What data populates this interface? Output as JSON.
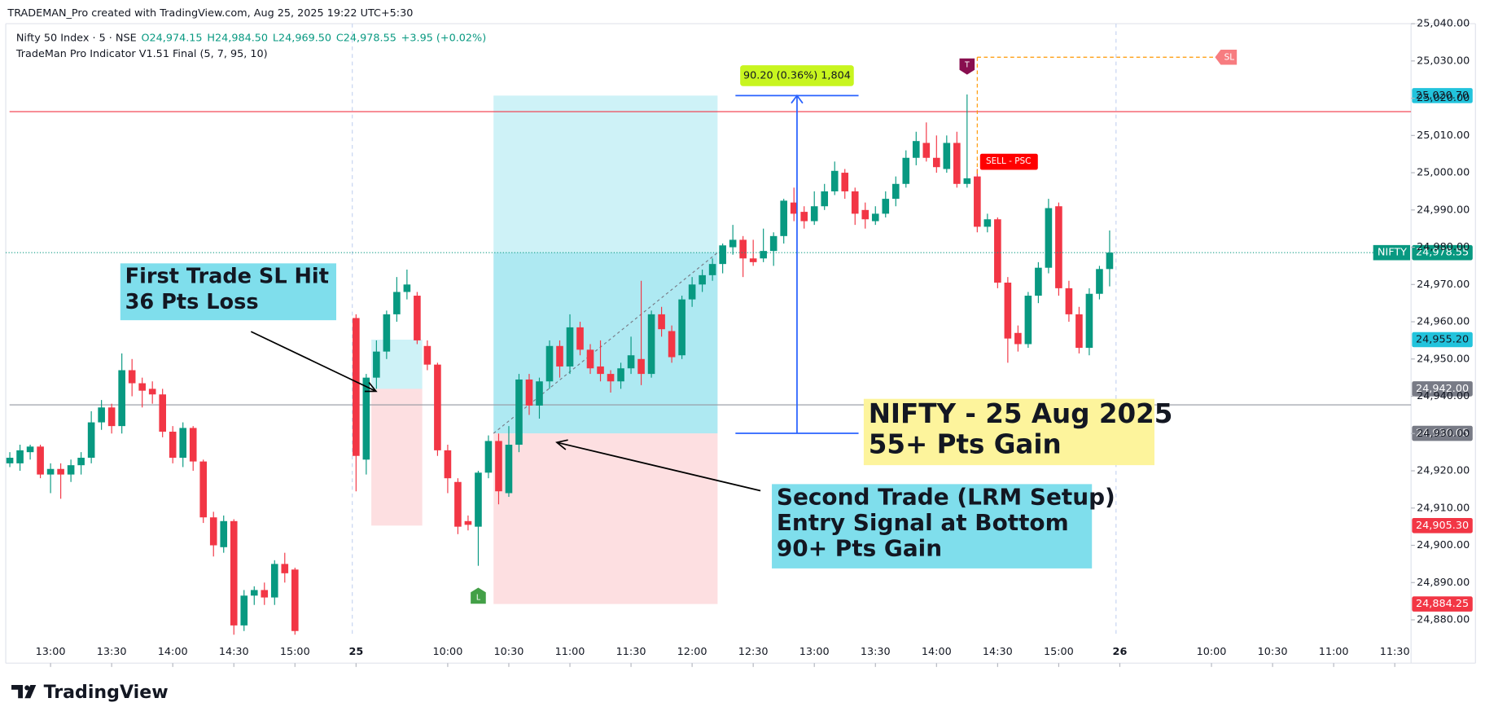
{
  "header": {
    "text": "TRADEMAN_Pro created with TradingView.com, Aug 25, 2025 19:22 UTC+5:30"
  },
  "legend": {
    "symbol": "Nifty 50 Index · 5 · NSE",
    "open": "O24,974.15",
    "high": "H24,984.50",
    "low": "L24,969.50",
    "close": "C24,978.55",
    "change": "+3.95 (+0.02%)",
    "indicator": "TradeMan Pro Indicator V1.51 Final (5, 7, 95, 10)"
  },
  "footer": {
    "brand": "TradingView"
  },
  "chart_data": {
    "type": "candlestick",
    "up_color": "#089981",
    "down_color": "#f23645",
    "grid": false,
    "xlim": [
      -0.4,
      137.6
    ],
    "xticks": [
      {
        "value": 4,
        "label": "13:00"
      },
      {
        "value": 10,
        "label": "13:30"
      },
      {
        "value": 16,
        "label": "14:00"
      },
      {
        "value": 22,
        "label": "14:30"
      },
      {
        "value": 28,
        "label": "15:00"
      },
      {
        "value": 34,
        "label": "25"
      },
      {
        "value": 43,
        "label": "10:00"
      },
      {
        "value": 49,
        "label": "10:30"
      },
      {
        "value": 55,
        "label": "11:00"
      },
      {
        "value": 61,
        "label": "11:30"
      },
      {
        "value": 67,
        "label": "12:00"
      },
      {
        "value": 73,
        "label": "12:30"
      },
      {
        "value": 79,
        "label": "13:00"
      },
      {
        "value": 85,
        "label": "13:30"
      },
      {
        "value": 91,
        "label": "14:00"
      },
      {
        "value": 97,
        "label": "14:30"
      },
      {
        "value": 103,
        "label": "15:00"
      },
      {
        "value": 109,
        "label": "26"
      },
      {
        "value": 118,
        "label": "10:00"
      },
      {
        "value": 124,
        "label": "10:30"
      },
      {
        "value": 130,
        "label": "11:00"
      },
      {
        "value": 136,
        "label": "11:30"
      }
    ],
    "ylim": [
      24876,
      25040
    ],
    "yticks": [
      {
        "value": 24880,
        "label": "24,880.00"
      },
      {
        "value": 24890,
        "label": "24,890.00"
      },
      {
        "value": 24900,
        "label": "24,900.00"
      },
      {
        "value": 24910,
        "label": "24,910.00"
      },
      {
        "value": 24920,
        "label": "24,920.00"
      },
      {
        "value": 24930,
        "label": "24,930.00"
      },
      {
        "value": 24940,
        "label": "24,940.00"
      },
      {
        "value": 24950,
        "label": "24,950.00"
      },
      {
        "value": 24960,
        "label": "24,960.00"
      },
      {
        "value": 24970,
        "label": "24,970.00"
      },
      {
        "value": 24980,
        "label": "24,980.00"
      },
      {
        "value": 24990,
        "label": "24,990.00"
      },
      {
        "value": 25000,
        "label": "25,000.00"
      },
      {
        "value": 25010,
        "label": "25,010.00"
      },
      {
        "value": 25020,
        "label": "25,020.00"
      },
      {
        "value": 25030,
        "label": "25,030.00"
      },
      {
        "value": 25040,
        "label": "25,040.00"
      }
    ],
    "open": [
      24922,
      24922,
      24925,
      24926.5,
      24919,
      24920.5,
      24919,
      24921.5,
      24923.5,
      24933,
      24937,
      24932,
      24947,
      24943.5,
      24942,
      24940.5,
      24930.5,
      24923.5,
      24931.5,
      24922.5,
      24907.5,
      24899.5,
      24906.5,
      24878.5,
      24886.5,
      24888,
      24886,
      24895,
      24893.5,
      null,
      null,
      null,
      null,
      null,
      24961,
      24923,
      24945,
      24952,
      24962,
      24968,
      24967,
      24953.5,
      24948.5,
      24925.5,
      24917,
      24906.5,
      24905,
      24919.5,
      24928,
      24914,
      24927,
      24944.5,
      24937.5,
      24944,
      24953.5,
      24948,
      24958.5,
      24952.5,
      24948,
      24946,
      24944,
      24947.5,
      24950,
      24946,
      24962,
      24957.5,
      24951,
      24966,
      24970,
      24972.5,
      24975.5,
      24980,
      24982,
      24977,
      24977,
      24979,
      24983,
      24992,
      24989.5,
      24987,
      24991,
      24995,
      25000,
      24995,
      24990,
      24987,
      24989,
      24993,
      24997,
      25004,
      25008,
      25004,
      25001,
      25008,
      24997,
      24999,
      24985.5,
      24987.5,
      24970.5,
      24957,
      24954,
      24967,
      24974.5,
      24991,
      24969,
      24962,
      24953,
      24967.5,
      24974.15
    ],
    "high": [
      24925,
      24927,
      24927,
      24927,
      24922,
      24922,
      24923,
      24925,
      24936,
      24939,
      24938,
      24951.5,
      24950,
      24945,
      24944,
      24942,
      24932,
      24933,
      24932,
      24923,
      24909,
      24908,
      24907,
      24888,
      24889,
      24890,
      24896,
      24898,
      24894,
      null,
      null,
      null,
      null,
      null,
      24962,
      24946,
      24955,
      24963,
      24972,
      24974,
      24968,
      24955,
      24949,
      24927,
      24918,
      24908,
      24920,
      24929.5,
      24930,
      24932,
      24946,
      24946,
      24945,
      24955,
      24955,
      24962,
      24960,
      24954,
      24955,
      24947,
      24949,
      24956,
      24971,
      24963,
      24964,
      24959,
      24967,
      24972,
      24974,
      24977,
      24981,
      24986,
      24983,
      24982,
      24985,
      24984,
      24993,
      24996,
      24991,
      24995,
      24997,
      25003,
      25001,
      24996,
      24992,
      24991,
      24995,
      24999,
      25006,
      25011,
      25013.5,
      25010,
      25010,
      25011,
      25021,
      25001,
      24989,
      24988,
      24972,
      24959,
      24968,
      24976,
      24993,
      24992,
      24971,
      24964,
      24969,
      24975,
      24984.5
    ],
    "low": [
      24921,
      24920,
      24923,
      24918,
      24914,
      24912.5,
      24917,
      24919,
      24922,
      24931,
      24930,
      24930,
      24940,
      24937,
      24938,
      24929,
      24922,
      24921,
      24920,
      24906,
      24897,
      24898,
      24876,
      24877,
      24884,
      24884,
      24884,
      24890,
      24876,
      null,
      null,
      null,
      null,
      null,
      24914.5,
      24919,
      24942,
      24950,
      24960,
      24966,
      24954,
      24947,
      24924,
      24914,
      24903,
      24904,
      24894.5,
      24918,
      24911,
      24913,
      24925,
      24935,
      24934,
      24942,
      24945,
      24946,
      24951,
      24946,
      24944,
      24941,
      24942,
      24946,
      24943,
      24945,
      24956,
      24949,
      24950,
      24964,
      24968,
      24971,
      24973,
      24978,
      24972,
      24975,
      24976,
      24975,
      24981,
      24987,
      24985,
      24986,
      24990,
      24994,
      24993,
      24986,
      24985,
      24986,
      24988,
      24991,
      24996,
      25002,
      25003,
      25000,
      25000,
      24996,
      24996,
      24984,
      24984,
      24969,
      24949,
      24952,
      24953,
      24965,
      24973,
      24967,
      24960,
      24951.5,
      24951,
      24966,
      24969.5
    ],
    "close": [
      24923.5,
      24925.5,
      24926.5,
      24919,
      24920.5,
      24919,
      24921.5,
      24923.5,
      24933,
      24937,
      24932,
      24947,
      24943.5,
      24941.5,
      24940.5,
      24930.5,
      24923.5,
      24931.5,
      24922.5,
      24907.5,
      24900,
      24906.5,
      24878.5,
      24886.5,
      24888,
      24886,
      24895,
      24892.5,
      24877,
      null,
      null,
      null,
      null,
      null,
      24924,
      24945,
      24952,
      24962,
      24968,
      24970,
      24955,
      24948.5,
      24925.5,
      24918,
      24905,
      24905.5,
      24919.5,
      24928,
      24914.5,
      24927,
      24944.5,
      24937.5,
      24944,
      24953.5,
      24948,
      24958.5,
      24952.5,
      24947.5,
      24946,
      24944,
      24947.5,
      24951,
      24946,
      24962,
      24958,
      24950.5,
      24966,
      24970,
      24972.5,
      24975.5,
      24980.5,
      24982,
      24977,
      24976,
      24979,
      24983,
      24992.5,
      24989,
      24987,
      24991,
      24995,
      25000.5,
      24995,
      24989,
      24987.5,
      24989,
      24993,
      24997,
      25004,
      25008.5,
      25004,
      25001.5,
      25008,
      24997,
      24998.5,
      24985.5,
      24987.5,
      24970.5,
      24955.5,
      24954,
      24967,
      24974.5,
      24990.5,
      24969,
      24962,
      24953,
      24967.5,
      24974.15,
      24978.55
    ],
    "price_labels": [
      {
        "value": 25020.7,
        "label": "25,020.70",
        "color": "#22c3dc",
        "text_color": "#131722"
      },
      {
        "value": 24978.55,
        "label": "24,978.55",
        "color": "#089981",
        "text_color": "#ffffff",
        "style": "dotted",
        "tag": "NIFTY"
      },
      {
        "value": 24955.2,
        "label": "24,955.20",
        "color": "#22c3dc",
        "text_color": "#131722"
      },
      {
        "value": 24942,
        "label": "24,942.00",
        "color": "#787b86",
        "text_color": "#ffffff"
      },
      {
        "value": 24930.05,
        "label": "24,930.05",
        "color": "#787b86",
        "text_color": "#ffffff"
      },
      {
        "value": 24905.3,
        "label": "24,905.30",
        "color": "#f23645",
        "text_color": "#ffffff"
      },
      {
        "value": 24884.25,
        "label": "24,884.25",
        "color": "#f23645",
        "text_color": "#ffffff"
      }
    ],
    "hlines": [
      {
        "value": 25016.4,
        "color": "#f23645"
      },
      {
        "value": 24937.7,
        "color": "#9598a1"
      }
    ],
    "measure_label": "90.20 (0.36%) 1,804",
    "stop_marker": {
      "label": "SL",
      "value": 25031
    },
    "signals": {
      "top": "T",
      "long": "L",
      "sell": "SELL - PSC"
    },
    "annotations": [
      {
        "lines": [
          "First Trade SL Hit",
          "36 Pts Loss"
        ],
        "color": "#7fdeec"
      },
      {
        "lines": [
          "NIFTY - 25 Aug 2025",
          "55+ Pts Gain"
        ],
        "color": "#fdf49c"
      },
      {
        "lines": [
          "Second Trade (LRM Setup)",
          "Entry Signal at Bottom",
          "90+ Pts Gain"
        ],
        "color": "#7fdeec"
      }
    ]
  }
}
